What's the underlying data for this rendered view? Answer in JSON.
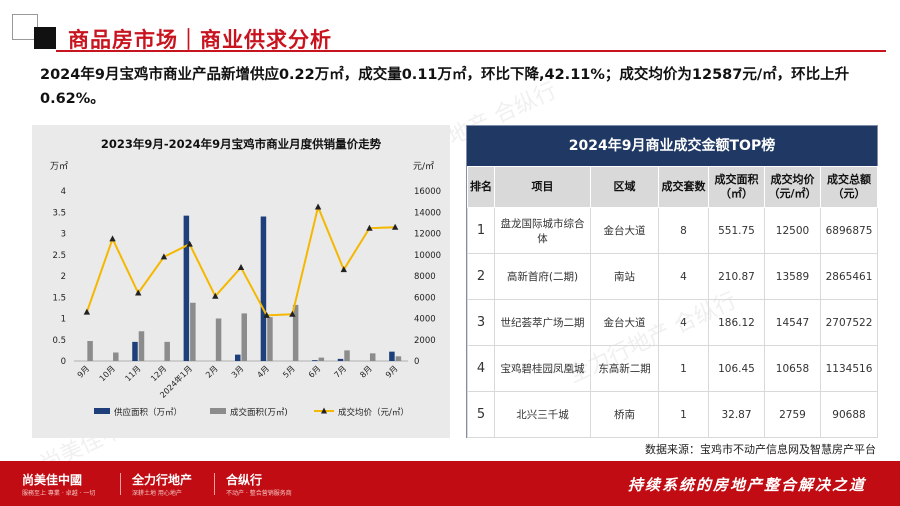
{
  "header": {
    "title": "商品房市场｜商业供求分析"
  },
  "summary": "2024年9月宝鸡市商业产品新增供应0.22万㎡，成交量0.11万㎡，环比下降,42.11%；成交均价为12587元/㎡，环比上升0.62%。",
  "chart_data": {
    "type": "bar",
    "title": "2023年9月-2024年9月宝鸡市商业月度供销量价走势",
    "ylabel_left": "万㎡",
    "ylabel_right": "元/㎡",
    "ylim_left": [
      0,
      4
    ],
    "ylim_right": [
      0,
      16000
    ],
    "left_ticks": [
      "0",
      "0.5",
      "1",
      "1.5",
      "2",
      "2.5",
      "3",
      "3.5",
      "4"
    ],
    "right_ticks": [
      "0",
      "2000",
      "4000",
      "6000",
      "8000",
      "10000",
      "12000",
      "14000",
      "16000"
    ],
    "categories": [
      "9月",
      "10月",
      "11月",
      "12月",
      "2024年1月",
      "2月",
      "3月",
      "4月",
      "5月",
      "6月",
      "7月",
      "8月",
      "9月"
    ],
    "series": [
      {
        "name": "供应面积（万㎡）",
        "type": "bar",
        "axis": "left",
        "color": "#1f3f7a",
        "values": [
          0,
          0,
          0.45,
          0,
          3.42,
          0,
          0.15,
          3.4,
          0,
          0.02,
          0.05,
          0,
          0.22
        ]
      },
      {
        "name": "成交面积(万㎡)",
        "type": "bar",
        "axis": "left",
        "color": "#8c8c8c",
        "values": [
          0.47,
          0.2,
          0.7,
          0.45,
          1.37,
          1.0,
          1.12,
          1.03,
          1.32,
          0.08,
          0.25,
          0.18,
          0.11
        ]
      },
      {
        "name": "成交均价（元/㎡）",
        "type": "line",
        "axis": "right",
        "color": "#f5b800",
        "values": [
          4600,
          11500,
          6400,
          9800,
          11000,
          6100,
          8800,
          4300,
          4400,
          14500,
          8600,
          12500,
          12587
        ]
      }
    ],
    "legend_position": "bottom"
  },
  "table": {
    "title": "2024年9月商业成交金额TOP榜",
    "headers": [
      "排名",
      "项目",
      "区域",
      "成交套数",
      "成交面积（㎡）",
      "成交均价（元/㎡）",
      "成交总额（元）"
    ],
    "rows": [
      [
        "1",
        "盘龙国际城市综合体",
        "金台大道",
        "8",
        "551.75",
        "12500",
        "6896875"
      ],
      [
        "2",
        "高新首府(二期)",
        "南站",
        "4",
        "210.87",
        "13589",
        "2865461"
      ],
      [
        "3",
        "世纪荟萃广场二期",
        "金台大道",
        "4",
        "186.12",
        "14547",
        "2707522"
      ],
      [
        "4",
        "宝鸡碧桂园凤凰城",
        "东高新二期",
        "1",
        "106.45",
        "10658",
        "1134516"
      ],
      [
        "5",
        "北兴三千城",
        "桥南",
        "1",
        "32.87",
        "2759",
        "90688"
      ]
    ]
  },
  "source": "数据来源：宝鸡市不动产信息网及智慧房产平台",
  "footer": {
    "brand1": "尚美佳中國",
    "brand1_sub": "服務至上 專業 · 卓越 · 一切",
    "brand2": "全力行地产",
    "brand2_sub": "深耕土地 用心地产",
    "brand3": "合纵行",
    "brand3_sub": "不动产 · 整合营销服务商",
    "slogan": "持续系统的房地产整合解决之道"
  }
}
